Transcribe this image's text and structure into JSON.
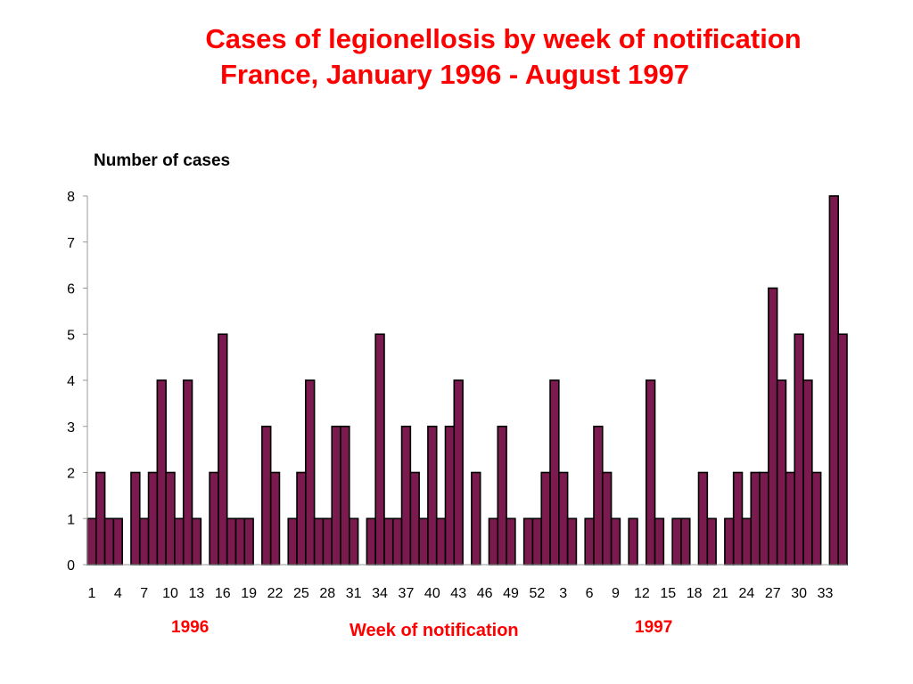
{
  "chart_data": {
    "type": "bar",
    "title": "Cases of legionellosis by week of notification",
    "subtitle": "France, January 1996 - August 1997",
    "ylabel": "Number of cases",
    "xlabel": "Week of notification",
    "year_labels": [
      "1996",
      "1997"
    ],
    "ylim": [
      0,
      8
    ],
    "y_ticks": [
      0,
      1,
      2,
      3,
      4,
      5,
      6,
      7,
      8
    ],
    "grid": false,
    "bar_color": "#7a1a4f",
    "bar_edge_color": "#000000",
    "x_tick_labels": [
      "1",
      "4",
      "7",
      "10",
      "13",
      "16",
      "19",
      "22",
      "25",
      "28",
      "31",
      "34",
      "37",
      "40",
      "43",
      "46",
      "49",
      "52",
      "3",
      "6",
      "9",
      "12",
      "15",
      "18",
      "21",
      "24",
      "27",
      "30",
      "33"
    ],
    "x_tick_every": 3,
    "categories": [
      "1996-W1",
      "1996-W2",
      "1996-W3",
      "1996-W4",
      "1996-W5",
      "1996-W6",
      "1996-W7",
      "1996-W8",
      "1996-W9",
      "1996-W10",
      "1996-W11",
      "1996-W12",
      "1996-W13",
      "1996-W14",
      "1996-W15",
      "1996-W16",
      "1996-W17",
      "1996-W18",
      "1996-W19",
      "1996-W20",
      "1996-W21",
      "1996-W22",
      "1996-W23",
      "1996-W24",
      "1996-W25",
      "1996-W26",
      "1996-W27",
      "1996-W28",
      "1996-W29",
      "1996-W30",
      "1996-W31",
      "1996-W32",
      "1996-W33",
      "1996-W34",
      "1996-W35",
      "1996-W36",
      "1996-W37",
      "1996-W38",
      "1996-W39",
      "1996-W40",
      "1996-W41",
      "1996-W42",
      "1996-W43",
      "1996-W44",
      "1996-W45",
      "1996-W46",
      "1996-W47",
      "1996-W48",
      "1996-W49",
      "1996-W50",
      "1996-W51",
      "1996-W52",
      "1997-W1",
      "1997-W2",
      "1997-W3",
      "1997-W4",
      "1997-W5",
      "1997-W6",
      "1997-W7",
      "1997-W8",
      "1997-W9",
      "1997-W10",
      "1997-W11",
      "1997-W12",
      "1997-W13",
      "1997-W14",
      "1997-W15",
      "1997-W16",
      "1997-W17",
      "1997-W18",
      "1997-W19",
      "1997-W20",
      "1997-W21",
      "1997-W22",
      "1997-W23",
      "1997-W24",
      "1997-W25",
      "1997-W26",
      "1997-W27",
      "1997-W28",
      "1997-W29",
      "1997-W30",
      "1997-W31",
      "1997-W32",
      "1997-W33",
      "1997-W34",
      "1997-W35"
    ],
    "values": [
      1,
      2,
      1,
      1,
      0,
      2,
      1,
      2,
      4,
      2,
      1,
      4,
      1,
      0,
      2,
      5,
      1,
      1,
      1,
      0,
      3,
      2,
      0,
      1,
      2,
      4,
      1,
      1,
      3,
      3,
      1,
      0,
      1,
      5,
      1,
      1,
      3,
      2,
      1,
      3,
      1,
      3,
      4,
      0,
      2,
      0,
      1,
      3,
      1,
      0,
      1,
      1,
      2,
      4,
      2,
      1,
      0,
      1,
      3,
      2,
      1,
      0,
      1,
      0,
      4,
      1,
      0,
      1,
      1,
      0,
      2,
      1,
      0,
      1,
      2,
      1,
      2,
      2,
      6,
      4,
      2,
      5,
      4,
      2,
      0,
      8,
      5
    ]
  }
}
